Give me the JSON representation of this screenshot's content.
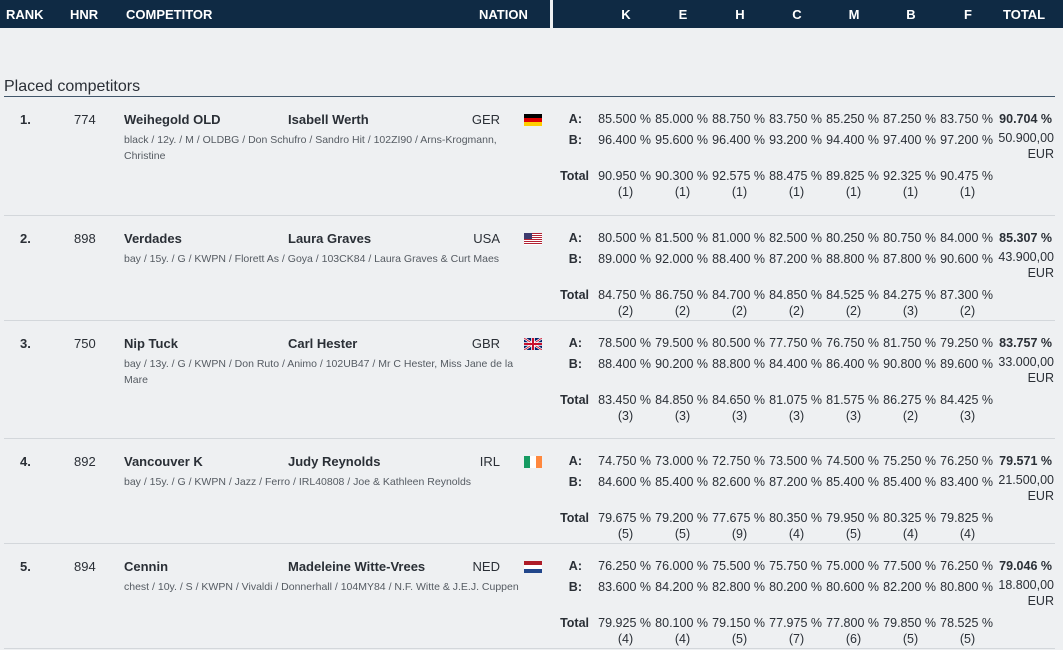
{
  "header": {
    "rank": "RANK",
    "hnr": "HNR",
    "competitor": "COMPETITOR",
    "nation": "NATION",
    "judges": [
      "K",
      "E",
      "H",
      "C",
      "M",
      "B",
      "F"
    ],
    "total": "TOTAL"
  },
  "section_title": "Placed competitors",
  "row_labels": {
    "a": "A:",
    "b": "B:",
    "total": "Total"
  },
  "competitors": [
    {
      "rank": "1.",
      "hnr": "774",
      "horse": "Weihegold OLD",
      "rider": "Isabell Werth",
      "nation": "GER",
      "flag": "germany-flag-icon",
      "details": "black / 12y. / M / OLDBG / Don Schufro / Sandro Hit / 102ZI90 / Arns-Krogmann, Christine",
      "a": [
        "85.500 %",
        "85.000 %",
        "88.750 %",
        "83.750 %",
        "85.250 %",
        "87.250 %",
        "83.750 %"
      ],
      "b": [
        "96.400 %",
        "95.600 %",
        "96.400 %",
        "93.200 %",
        "94.400 %",
        "97.400 %",
        "97.200 %"
      ],
      "total": [
        "90.950 %",
        "90.300 %",
        "92.575 %",
        "88.475 %",
        "89.825 %",
        "92.325 %",
        "90.475 %"
      ],
      "places": [
        "(1)",
        "(1)",
        "(1)",
        "(1)",
        "(1)",
        "(1)",
        "(1)"
      ],
      "total_pct": "90.704 %",
      "prize": "50.900,00 EUR"
    },
    {
      "rank": "2.",
      "hnr": "898",
      "horse": "Verdades",
      "rider": "Laura Graves",
      "nation": "USA",
      "flag": "usa-flag-icon",
      "details": "bay / 15y. / G / KWPN / Florett As / Goya / 103CK84 / Laura Graves & Curt Maes",
      "a": [
        "80.500 %",
        "81.500 %",
        "81.000 %",
        "82.500 %",
        "80.250 %",
        "80.750 %",
        "84.000 %"
      ],
      "b": [
        "89.000 %",
        "92.000 %",
        "88.400 %",
        "87.200 %",
        "88.800 %",
        "87.800 %",
        "90.600 %"
      ],
      "total": [
        "84.750 %",
        "86.750 %",
        "84.700 %",
        "84.850 %",
        "84.525 %",
        "84.275 %",
        "87.300 %"
      ],
      "places": [
        "(2)",
        "(2)",
        "(2)",
        "(2)",
        "(2)",
        "(3)",
        "(2)"
      ],
      "total_pct": "85.307 %",
      "prize": "43.900,00 EUR"
    },
    {
      "rank": "3.",
      "hnr": "750",
      "horse": "Nip Tuck",
      "rider": "Carl Hester",
      "nation": "GBR",
      "flag": "uk-flag-icon",
      "details": "bay / 13y. / G / KWPN / Don Ruto / Animo / 102UB47 / Mr C Hester, Miss Jane de la Mare",
      "a": [
        "78.500 %",
        "79.500 %",
        "80.500 %",
        "77.750 %",
        "76.750 %",
        "81.750 %",
        "79.250 %"
      ],
      "b": [
        "88.400 %",
        "90.200 %",
        "88.800 %",
        "84.400 %",
        "86.400 %",
        "90.800 %",
        "89.600 %"
      ],
      "total": [
        "83.450 %",
        "84.850 %",
        "84.650 %",
        "81.075 %",
        "81.575 %",
        "86.275 %",
        "84.425 %"
      ],
      "places": [
        "(3)",
        "(3)",
        "(3)",
        "(3)",
        "(3)",
        "(2)",
        "(3)"
      ],
      "total_pct": "83.757 %",
      "prize": "33.000,00 EUR"
    },
    {
      "rank": "4.",
      "hnr": "892",
      "horse": "Vancouver K",
      "rider": "Judy Reynolds",
      "nation": "IRL",
      "flag": "ireland-flag-icon",
      "details": "bay / 15y. / G / KWPN / Jazz / Ferro / IRL40808 / Joe & Kathleen Reynolds",
      "a": [
        "74.750 %",
        "73.000 %",
        "72.750 %",
        "73.500 %",
        "74.500 %",
        "75.250 %",
        "76.250 %"
      ],
      "b": [
        "84.600 %",
        "85.400 %",
        "82.600 %",
        "87.200 %",
        "85.400 %",
        "85.400 %",
        "83.400 %"
      ],
      "total": [
        "79.675 %",
        "79.200 %",
        "77.675 %",
        "80.350 %",
        "79.950 %",
        "80.325 %",
        "79.825 %"
      ],
      "places": [
        "(5)",
        "(5)",
        "(9)",
        "(4)",
        "(5)",
        "(4)",
        "(4)"
      ],
      "total_pct": "79.571 %",
      "prize": "21.500,00 EUR"
    },
    {
      "rank": "5.",
      "hnr": "894",
      "horse": "Cennin",
      "rider": "Madeleine Witte-Vrees",
      "nation": "NED",
      "flag": "netherlands-flag-icon",
      "details": "chest / 10y. / S / KWPN / Vivaldi / Donnerhall / 104MY84 / N.F. Witte & J.E.J. Cuppen",
      "a": [
        "76.250 %",
        "76.000 %",
        "75.500 %",
        "75.750 %",
        "75.000 %",
        "77.500 %",
        "76.250 %"
      ],
      "b": [
        "83.600 %",
        "84.200 %",
        "82.800 %",
        "80.200 %",
        "80.600 %",
        "82.200 %",
        "80.800 %"
      ],
      "total": [
        "79.925 %",
        "80.100 %",
        "79.150 %",
        "77.975 %",
        "77.800 %",
        "79.850 %",
        "78.525 %"
      ],
      "places": [
        "(4)",
        "(4)",
        "(5)",
        "(7)",
        "(6)",
        "(5)",
        "(5)"
      ],
      "total_pct": "79.046 %",
      "prize": "18.800,00 EUR"
    }
  ]
}
